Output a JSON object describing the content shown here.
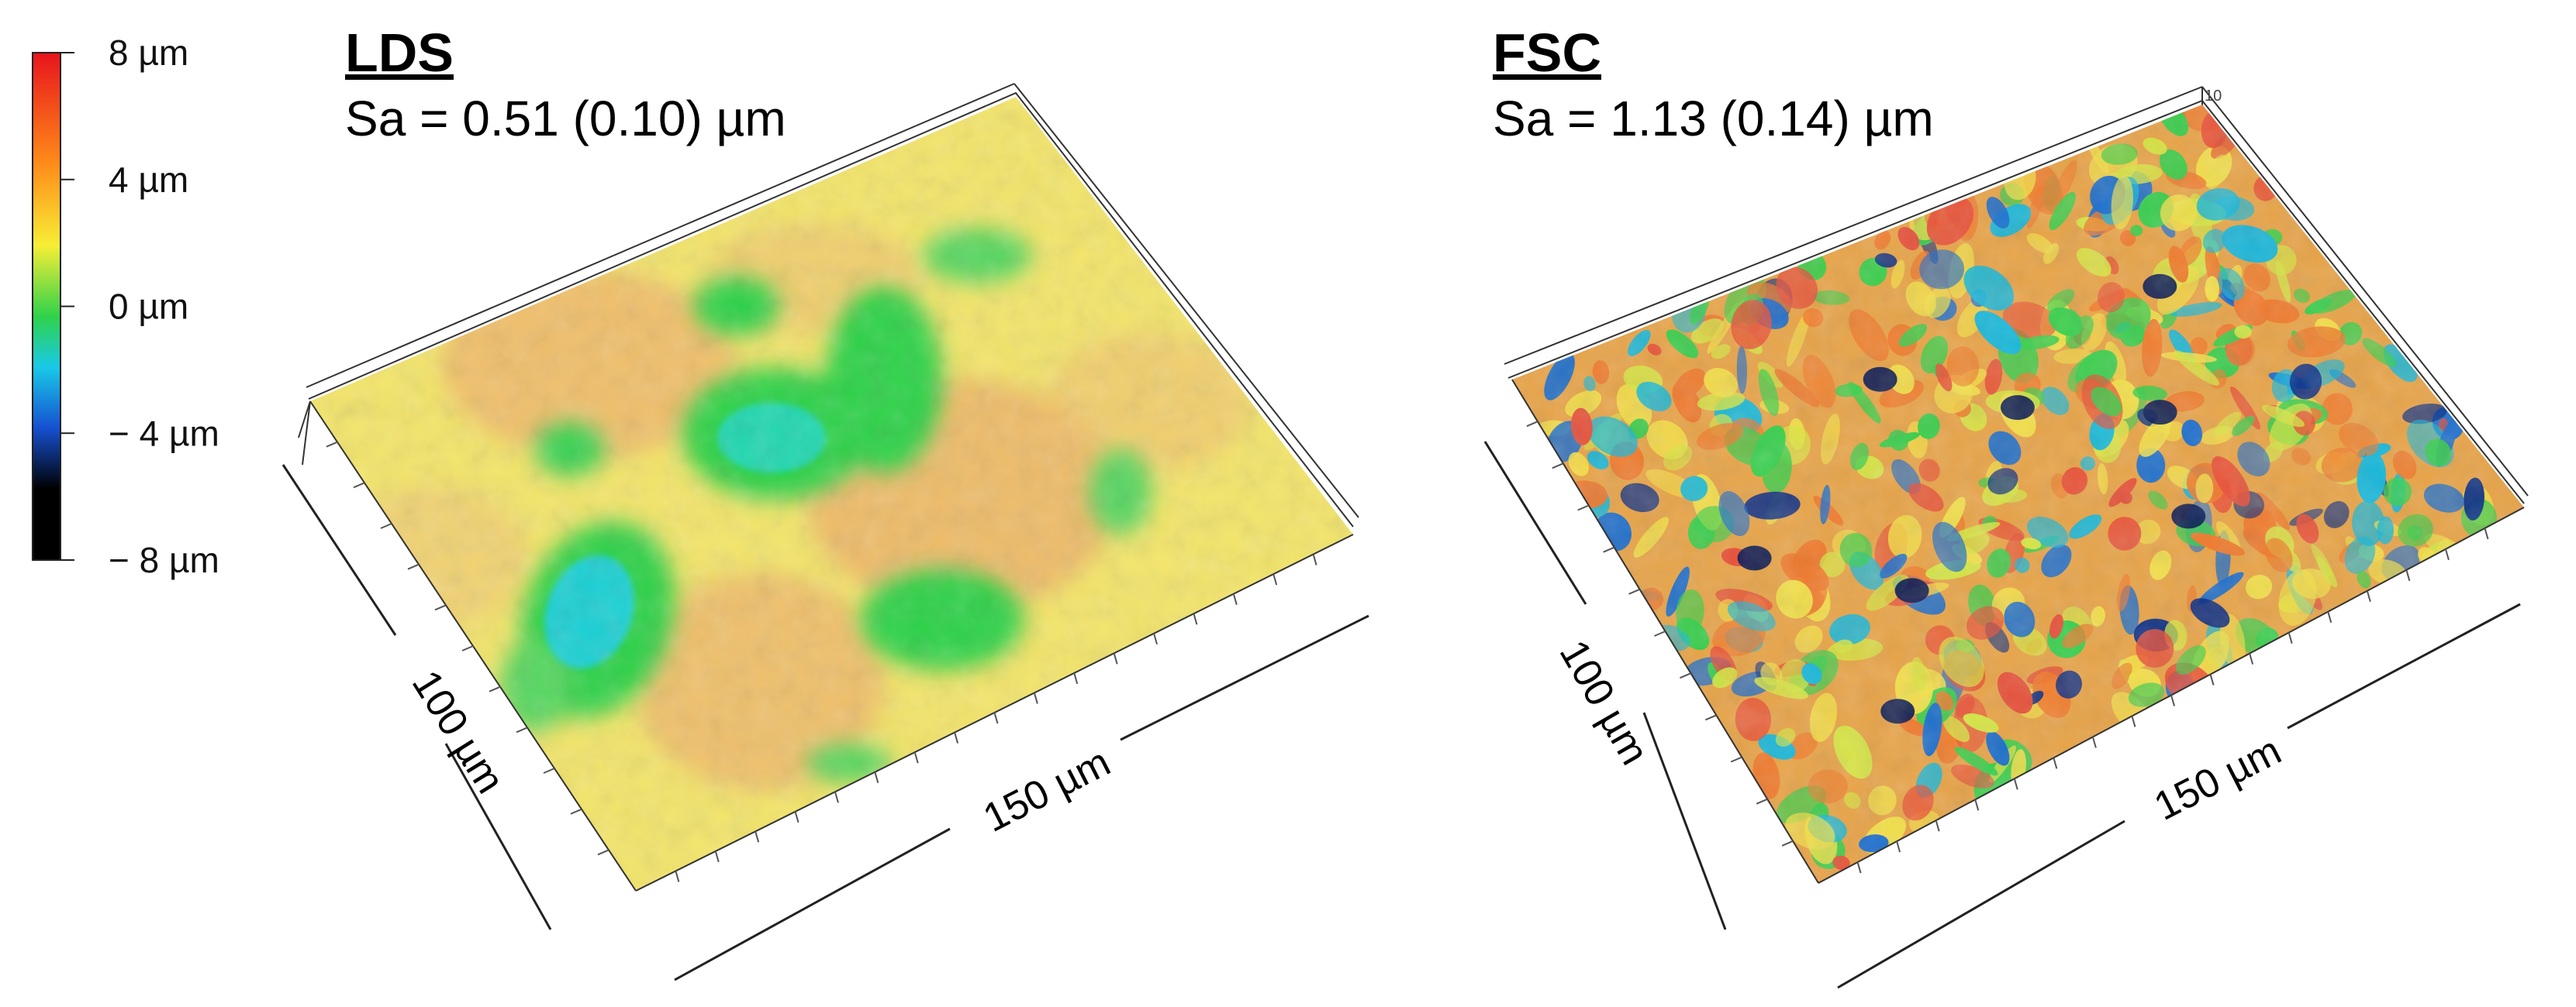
{
  "colorbar": {
    "ticks": [
      "8 µm",
      "4 µm",
      "0 µm",
      "− 4 µm",
      "− 8 µm"
    ],
    "colors": [
      "#e8141c",
      "#ff8c1a",
      "#f7ee35",
      "#2fd24a",
      "#19c9e8",
      "#1650d0",
      "#000000"
    ]
  },
  "panels": [
    {
      "title": "LDS",
      "sa_text": "Sa = 0.51 (0.10) µm",
      "width_label": "150 µm",
      "depth_label": "100 µm",
      "base_color": "#f3e56a"
    },
    {
      "title": "FSC",
      "sa_text": "Sa = 1.13 (0.14) µm",
      "width_label": "150 µm",
      "depth_label": "100 µm",
      "corner_label": "10",
      "base_color": "#e8a448"
    }
  ]
}
